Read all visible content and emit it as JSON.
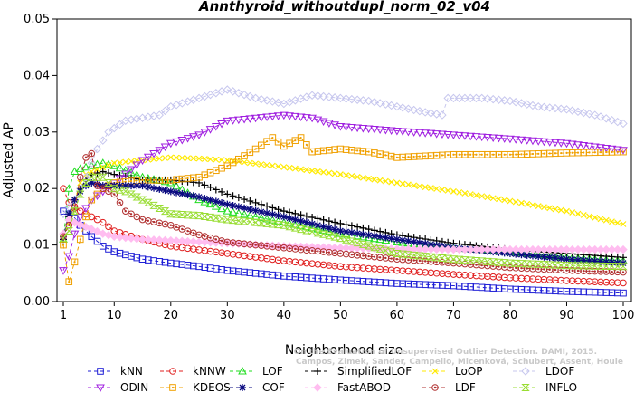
{
  "chart_data": {
    "type": "line",
    "title": "Annthyroid_withoutdupl_norm_02_v04",
    "xlabel": "Neighborhood size",
    "ylabel": "Adjusted AP",
    "xlim": [
      1,
      100
    ],
    "ylim": [
      0,
      0.05
    ],
    "x_ticks": [
      1,
      10,
      20,
      30,
      40,
      50,
      60,
      70,
      80,
      90,
      100
    ],
    "y_ticks": [
      "0.00",
      "0.01",
      "0.02",
      "0.03",
      "0.04",
      "0.05"
    ],
    "grid": false,
    "legend_position": "bottom",
    "watermark": [
      "Campos, Zimek, Sander, Campello, Micenková, Schubert, Assent, Houle",
      "On the Evaluation of Unsupervised Outlier Detection. DAMI, 2015."
    ],
    "series": [
      {
        "name": "kNN",
        "color": "#1f1fd6",
        "marker": "square",
        "points": [
          [
            1,
            0.016
          ],
          [
            2,
            0.0155
          ],
          [
            3,
            0.0148
          ],
          [
            4,
            0.0135
          ],
          [
            5,
            0.0125
          ],
          [
            6,
            0.0115
          ],
          [
            8,
            0.0098
          ],
          [
            10,
            0.0088
          ],
          [
            15,
            0.0075
          ],
          [
            20,
            0.0068
          ],
          [
            25,
            0.0062
          ],
          [
            30,
            0.0055
          ],
          [
            40,
            0.0045
          ],
          [
            50,
            0.0038
          ],
          [
            60,
            0.0032
          ],
          [
            70,
            0.0028
          ],
          [
            80,
            0.0022
          ],
          [
            90,
            0.0018
          ],
          [
            100,
            0.0015
          ]
        ]
      },
      {
        "name": "kNNW",
        "color": "#e01f1f",
        "marker": "circle",
        "points": [
          [
            1,
            0.02
          ],
          [
            2,
            0.0175
          ],
          [
            3,
            0.0168
          ],
          [
            4,
            0.016
          ],
          [
            5,
            0.0155
          ],
          [
            6,
            0.015
          ],
          [
            8,
            0.014
          ],
          [
            10,
            0.0125
          ],
          [
            15,
            0.011
          ],
          [
            20,
            0.0098
          ],
          [
            30,
            0.0085
          ],
          [
            40,
            0.0072
          ],
          [
            50,
            0.0062
          ],
          [
            60,
            0.0055
          ],
          [
            70,
            0.0048
          ],
          [
            80,
            0.0042
          ],
          [
            90,
            0.0037
          ],
          [
            100,
            0.0033
          ]
        ]
      },
      {
        "name": "LOF",
        "color": "#22dd22",
        "marker": "triangle-up",
        "points": [
          [
            1,
            0.011
          ],
          [
            2,
            0.02
          ],
          [
            3,
            0.023
          ],
          [
            4,
            0.0235
          ],
          [
            6,
            0.024
          ],
          [
            8,
            0.0245
          ],
          [
            10,
            0.024
          ],
          [
            15,
            0.022
          ],
          [
            20,
            0.021
          ],
          [
            25,
            0.018
          ],
          [
            30,
            0.016
          ],
          [
            40,
            0.014
          ],
          [
            50,
            0.012
          ],
          [
            60,
            0.0105
          ],
          [
            70,
            0.0095
          ],
          [
            80,
            0.0088
          ],
          [
            90,
            0.0078
          ],
          [
            100,
            0.0072
          ]
        ]
      },
      {
        "name": "SimplifiedLOF",
        "color": "#000000",
        "marker": "plus",
        "points": [
          [
            1,
            0.011
          ],
          [
            2,
            0.015
          ],
          [
            3,
            0.018
          ],
          [
            4,
            0.02
          ],
          [
            5,
            0.0215
          ],
          [
            6,
            0.0225
          ],
          [
            8,
            0.023
          ],
          [
            10,
            0.0225
          ],
          [
            15,
            0.0215
          ],
          [
            20,
            0.0215
          ],
          [
            25,
            0.021
          ],
          [
            30,
            0.019
          ],
          [
            35,
            0.0175
          ],
          [
            40,
            0.016
          ],
          [
            50,
            0.0138
          ],
          [
            60,
            0.0118
          ],
          [
            70,
            0.0103
          ],
          [
            80,
            0.0092
          ],
          [
            90,
            0.0085
          ],
          [
            100,
            0.0078
          ]
        ]
      },
      {
        "name": "LoOP",
        "color": "#ffea00",
        "marker": "x",
        "points": [
          [
            1,
            0.0115
          ],
          [
            2,
            0.014
          ],
          [
            3,
            0.018
          ],
          [
            4,
            0.021
          ],
          [
            5,
            0.0225
          ],
          [
            6,
            0.023
          ],
          [
            10,
            0.0245
          ],
          [
            15,
            0.025
          ],
          [
            20,
            0.0255
          ],
          [
            25,
            0.0253
          ],
          [
            30,
            0.025
          ],
          [
            40,
            0.0238
          ],
          [
            50,
            0.0225
          ],
          [
            60,
            0.021
          ],
          [
            70,
            0.0195
          ],
          [
            80,
            0.0178
          ],
          [
            90,
            0.016
          ],
          [
            100,
            0.0137
          ]
        ]
      },
      {
        "name": "LDOF",
        "color": "#c7c7ee",
        "marker": "diamond",
        "points": [
          [
            1,
            0.0155
          ],
          [
            3,
            0.018
          ],
          [
            5,
            0.022
          ],
          [
            7,
            0.027
          ],
          [
            9,
            0.03
          ],
          [
            12,
            0.032
          ],
          [
            15,
            0.0325
          ],
          [
            18,
            0.033
          ],
          [
            20,
            0.0345
          ],
          [
            25,
            0.036
          ],
          [
            30,
            0.0375
          ],
          [
            35,
            0.036
          ],
          [
            40,
            0.035
          ],
          [
            45,
            0.0365
          ],
          [
            50,
            0.036
          ],
          [
            55,
            0.0355
          ],
          [
            60,
            0.0345
          ],
          [
            65,
            0.0335
          ],
          [
            68,
            0.033
          ],
          [
            69,
            0.036
          ],
          [
            75,
            0.036
          ],
          [
            80,
            0.0355
          ],
          [
            85,
            0.0345
          ],
          [
            90,
            0.034
          ],
          [
            95,
            0.033
          ],
          [
            100,
            0.0315
          ]
        ]
      },
      {
        "name": "ODIN",
        "color": "#a020e0",
        "marker": "triangle-down",
        "points": [
          [
            1,
            0.0055
          ],
          [
            2,
            0.008
          ],
          [
            3,
            0.012
          ],
          [
            4,
            0.015
          ],
          [
            5,
            0.0165
          ],
          [
            6,
            0.018
          ],
          [
            8,
            0.0195
          ],
          [
            10,
            0.021
          ],
          [
            15,
            0.025
          ],
          [
            20,
            0.028
          ],
          [
            25,
            0.0295
          ],
          [
            28,
            0.031
          ],
          [
            30,
            0.032
          ],
          [
            35,
            0.0325
          ],
          [
            40,
            0.033
          ],
          [
            45,
            0.0325
          ],
          [
            50,
            0.031
          ],
          [
            60,
            0.0302
          ],
          [
            70,
            0.0295
          ],
          [
            80,
            0.0288
          ],
          [
            90,
            0.028
          ],
          [
            100,
            0.0268
          ]
        ]
      },
      {
        "name": "KDEOS",
        "color": "#f0a000",
        "marker": "square-dot",
        "points": [
          [
            1,
            0.01
          ],
          [
            2,
            0.0035
          ],
          [
            3,
            0.007
          ],
          [
            4,
            0.011
          ],
          [
            5,
            0.015
          ],
          [
            6,
            0.018
          ],
          [
            8,
            0.02
          ],
          [
            10,
            0.021
          ],
          [
            15,
            0.0215
          ],
          [
            20,
            0.0215
          ],
          [
            25,
            0.022
          ],
          [
            30,
            0.024
          ],
          [
            35,
            0.027
          ],
          [
            38,
            0.029
          ],
          [
            40,
            0.0275
          ],
          [
            43,
            0.029
          ],
          [
            45,
            0.0265
          ],
          [
            50,
            0.027
          ],
          [
            55,
            0.0265
          ],
          [
            60,
            0.0255
          ],
          [
            70,
            0.026
          ],
          [
            80,
            0.026
          ],
          [
            90,
            0.0263
          ],
          [
            100,
            0.0265
          ]
        ]
      },
      {
        "name": "COF",
        "color": "#0a0a80",
        "marker": "star",
        "points": [
          [
            1,
            0.0115
          ],
          [
            2,
            0.0155
          ],
          [
            3,
            0.018
          ],
          [
            4,
            0.0195
          ],
          [
            5,
            0.0205
          ],
          [
            6,
            0.021
          ],
          [
            8,
            0.0205
          ],
          [
            10,
            0.0205
          ],
          [
            15,
            0.0205
          ],
          [
            20,
            0.0195
          ],
          [
            25,
            0.0185
          ],
          [
            30,
            0.0172
          ],
          [
            40,
            0.015
          ],
          [
            50,
            0.0125
          ],
          [
            60,
            0.011
          ],
          [
            70,
            0.0095
          ],
          [
            80,
            0.0085
          ],
          [
            90,
            0.0075
          ],
          [
            100,
            0.0068
          ]
        ]
      },
      {
        "name": "FastABOD",
        "color": "#ffbdf0",
        "marker": "diamond-filled",
        "points": [
          [
            1,
            0.012
          ],
          [
            2,
            0.0145
          ],
          [
            3,
            0.014
          ],
          [
            5,
            0.0132
          ],
          [
            8,
            0.012
          ],
          [
            10,
            0.0115
          ],
          [
            15,
            0.011
          ],
          [
            20,
            0.0108
          ],
          [
            30,
            0.0103
          ],
          [
            40,
            0.0098
          ],
          [
            50,
            0.0095
          ],
          [
            60,
            0.0093
          ],
          [
            70,
            0.0092
          ],
          [
            80,
            0.0092
          ],
          [
            90,
            0.0092
          ],
          [
            100,
            0.0092
          ]
        ]
      },
      {
        "name": "LDF",
        "color": "#b03030",
        "marker": "circle-dot",
        "points": [
          [
            1,
            0.0115
          ],
          [
            2,
            0.0135
          ],
          [
            3,
            0.0165
          ],
          [
            4,
            0.022
          ],
          [
            5,
            0.0255
          ],
          [
            6,
            0.0262
          ],
          [
            7,
            0.0205
          ],
          [
            8,
            0.02
          ],
          [
            10,
            0.019
          ],
          [
            12,
            0.016
          ],
          [
            15,
            0.0145
          ],
          [
            20,
            0.0135
          ],
          [
            25,
            0.0118
          ],
          [
            28,
            0.011
          ],
          [
            30,
            0.0105
          ],
          [
            40,
            0.0095
          ],
          [
            50,
            0.0085
          ],
          [
            60,
            0.0075
          ],
          [
            70,
            0.0068
          ],
          [
            80,
            0.006
          ],
          [
            90,
            0.0055
          ],
          [
            100,
            0.0052
          ]
        ]
      },
      {
        "name": "INFLO",
        "color": "#99dd33",
        "marker": "hourglass",
        "points": [
          [
            1,
            0.0112
          ],
          [
            2,
            0.0125
          ],
          [
            3,
            0.016
          ],
          [
            4,
            0.019
          ],
          [
            5,
            0.021
          ],
          [
            6,
            0.022
          ],
          [
            8,
            0.022
          ],
          [
            10,
            0.02
          ],
          [
            12,
            0.0195
          ],
          [
            15,
            0.018
          ],
          [
            20,
            0.0155
          ],
          [
            25,
            0.0152
          ],
          [
            30,
            0.0145
          ],
          [
            40,
            0.0135
          ],
          [
            50,
            0.0112
          ],
          [
            60,
            0.0085
          ],
          [
            70,
            0.0075
          ],
          [
            80,
            0.0068
          ],
          [
            90,
            0.0064
          ],
          [
            100,
            0.0062
          ]
        ]
      }
    ]
  }
}
